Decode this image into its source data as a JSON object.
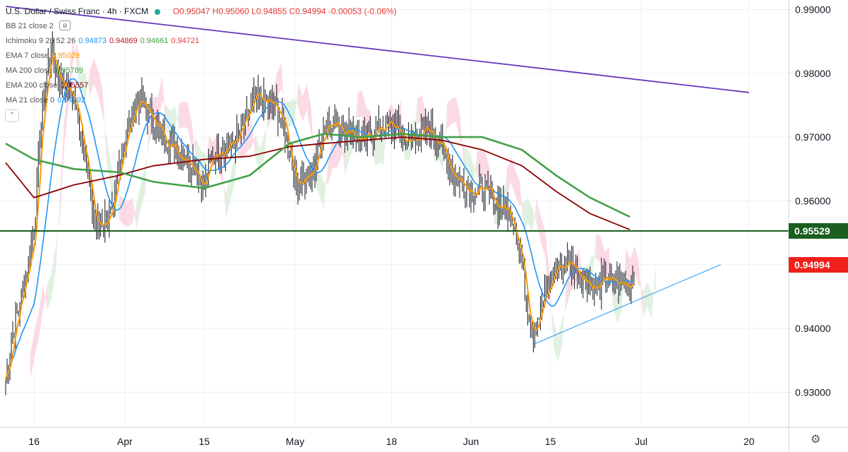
{
  "header": {
    "symbol": "U.S. Dollar / Swiss Franc · 4h · FXCM",
    "ohlc": {
      "open": "O0.95047",
      "high": "H0.95060",
      "low": "L0.94855",
      "close": "C0.94994",
      "change": "-0.00053 (-0.06%)"
    }
  },
  "indicators": [
    {
      "label": "BB 21 close 2",
      "values": []
    },
    {
      "label": "Ichimoku 9 26 52 26",
      "values": [
        {
          "v": "0.94873",
          "color": "#2196f3"
        },
        {
          "v": "0.94869",
          "color": "#b71c1c"
        },
        {
          "v": "0.94661",
          "color": "#43a047"
        },
        {
          "v": "0.94721",
          "color": "#e53935"
        }
      ]
    },
    {
      "label": "EMA 7 close",
      "values": [
        {
          "v": "0.95029",
          "color": "#ff9800"
        }
      ]
    },
    {
      "label": "MA 200 close",
      "values": [
        {
          "v": "0.95789",
          "color": "#43a047"
        }
      ]
    },
    {
      "label": "EMA 200 close",
      "values": [
        {
          "v": "0.95557",
          "color": "#8b0000"
        }
      ]
    },
    {
      "label": "MA 21 close 0",
      "values": [
        {
          "v": "0.94892",
          "color": "#2196f3"
        }
      ]
    }
  ],
  "price_tags": [
    {
      "text": "0.95529",
      "value": 0.95529,
      "color": "#1b5e20"
    },
    {
      "text": "0.94994",
      "value": 0.94994,
      "color": "#f0201a"
    }
  ],
  "colors": {
    "up_candle": "#131722",
    "ema7": "#ff9800",
    "ma21": "#2196f3",
    "ma200": "#43a047",
    "ema200": "#8b0000",
    "trend_down": "#673ab7",
    "trend_up": "#2196f3",
    "hline": "#1b5e20",
    "cloud_bull": "#c8e6c9",
    "cloud_bear": "#f8bbd0"
  },
  "chart_data": {
    "type": "candlestick",
    "title": "U.S. Dollar / Swiss Franc · 4h · FXCM",
    "y_ticks": [
      "0.99000",
      "0.98000",
      "0.97000",
      "0.96000",
      "0.95000",
      "0.94000",
      "0.93000"
    ],
    "ylim": [
      0.9245,
      0.9915
    ],
    "x_ticks": [
      "16",
      "Apr",
      "15",
      "May",
      "18",
      "Jun",
      "15",
      "Jul",
      "20"
    ],
    "grid": true,
    "series": {
      "close_path": [
        [
          "2020-03-11",
          0.932
        ],
        [
          "2020-03-12",
          0.938
        ],
        [
          "2020-03-13",
          0.942
        ],
        [
          "2020-03-16",
          0.955
        ],
        [
          "2020-03-17",
          0.97
        ],
        [
          "2020-03-18",
          0.978
        ],
        [
          "2020-03-19",
          0.984
        ],
        [
          "2020-03-20",
          0.98
        ],
        [
          "2020-03-23",
          0.976
        ],
        [
          "2020-03-24",
          0.972
        ],
        [
          "2020-03-25",
          0.968
        ],
        [
          "2020-03-26",
          0.96
        ],
        [
          "2020-03-27",
          0.956
        ],
        [
          "2020-03-30",
          0.958
        ],
        [
          "2020-03-31",
          0.966
        ],
        [
          "2020-04-01",
          0.97
        ],
        [
          "2020-04-02",
          0.972
        ],
        [
          "2020-04-03",
          0.976
        ],
        [
          "2020-04-06",
          0.973
        ],
        [
          "2020-04-07",
          0.971
        ],
        [
          "2020-04-08",
          0.97
        ],
        [
          "2020-04-09",
          0.969
        ],
        [
          "2020-04-10",
          0.968
        ],
        [
          "2020-04-13",
          0.966
        ],
        [
          "2020-04-14",
          0.964
        ],
        [
          "2020-04-15",
          0.962
        ],
        [
          "2020-04-16",
          0.966
        ],
        [
          "2020-04-17",
          0.968
        ],
        [
          "2020-04-20",
          0.969
        ],
        [
          "2020-04-21",
          0.97
        ],
        [
          "2020-04-22",
          0.972
        ],
        [
          "2020-04-23",
          0.974
        ],
        [
          "2020-04-24",
          0.976
        ],
        [
          "2020-04-27",
          0.975
        ],
        [
          "2020-04-28",
          0.974
        ],
        [
          "2020-04-29",
          0.972
        ],
        [
          "2020-04-30",
          0.968
        ],
        [
          "2020-05-01",
          0.963
        ],
        [
          "2020-05-04",
          0.964
        ],
        [
          "2020-05-05",
          0.968
        ],
        [
          "2020-05-06",
          0.971
        ],
        [
          "2020-05-07",
          0.973
        ],
        [
          "2020-05-08",
          0.972
        ],
        [
          "2020-05-11",
          0.971
        ],
        [
          "2020-05-12",
          0.97
        ],
        [
          "2020-05-13",
          0.969
        ],
        [
          "2020-05-14",
          0.97
        ],
        [
          "2020-05-15",
          0.971
        ],
        [
          "2020-05-18",
          0.972
        ],
        [
          "2020-05-19",
          0.971
        ],
        [
          "2020-05-20",
          0.97
        ],
        [
          "2020-05-21",
          0.969
        ],
        [
          "2020-05-22",
          0.97
        ],
        [
          "2020-05-25",
          0.971
        ],
        [
          "2020-05-26",
          0.97
        ],
        [
          "2020-05-27",
          0.968
        ],
        [
          "2020-05-28",
          0.966
        ],
        [
          "2020-05-29",
          0.964
        ],
        [
          "2020-06-01",
          0.962
        ],
        [
          "2020-06-02",
          0.9615
        ],
        [
          "2020-06-03",
          0.962
        ],
        [
          "2020-06-04",
          0.961
        ],
        [
          "2020-06-05",
          0.96
        ],
        [
          "2020-06-08",
          0.958
        ],
        [
          "2020-06-09",
          0.955
        ],
        [
          "2020-06-10",
          0.95
        ],
        [
          "2020-06-11",
          0.943
        ],
        [
          "2020-06-12",
          0.94
        ],
        [
          "2020-06-15",
          0.947
        ],
        [
          "2020-06-16",
          0.95
        ],
        [
          "2020-06-17",
          0.9495
        ],
        [
          "2020-06-18",
          0.9505
        ],
        [
          "2020-06-19",
          0.95
        ],
        [
          "2020-06-22",
          0.947
        ],
        [
          "2020-06-23",
          0.946
        ],
        [
          "2020-06-24",
          0.947
        ],
        [
          "2020-06-25",
          0.948
        ],
        [
          "2020-06-26",
          0.947
        ],
        [
          "2020-06-29",
          0.947
        ],
        [
          "2020-06-30",
          0.9499
        ]
      ],
      "ma200": [
        [
          "2020-03-11",
          0.969
        ],
        [
          "2020-03-16",
          0.9665
        ],
        [
          "2020-03-23",
          0.965
        ],
        [
          "2020-03-31",
          0.9645
        ],
        [
          "2020-04-06",
          0.963
        ],
        [
          "2020-04-15",
          0.962
        ],
        [
          "2020-04-23",
          0.964
        ],
        [
          "2020-04-30",
          0.969
        ],
        [
          "2020-05-06",
          0.9705
        ],
        [
          "2020-05-13",
          0.97
        ],
        [
          "2020-05-20",
          0.9705
        ],
        [
          "2020-05-27",
          0.97
        ],
        [
          "2020-06-03",
          0.97
        ],
        [
          "2020-06-10",
          0.968
        ],
        [
          "2020-06-16",
          0.964
        ],
        [
          "2020-06-22",
          0.9605
        ],
        [
          "2020-06-29",
          0.9575
        ]
      ],
      "ema200": [
        [
          "2020-03-11",
          0.966
        ],
        [
          "2020-03-16",
          0.9605
        ],
        [
          "2020-03-23",
          0.9625
        ],
        [
          "2020-03-31",
          0.964
        ],
        [
          "2020-04-06",
          0.9655
        ],
        [
          "2020-04-15",
          0.9665
        ],
        [
          "2020-04-23",
          0.967
        ],
        [
          "2020-04-30",
          0.9685
        ],
        [
          "2020-05-06",
          0.969
        ],
        [
          "2020-05-13",
          0.9695
        ],
        [
          "2020-05-20",
          0.97
        ],
        [
          "2020-05-27",
          0.9695
        ],
        [
          "2020-06-03",
          0.968
        ],
        [
          "2020-06-10",
          0.9655
        ],
        [
          "2020-06-16",
          0.9615
        ],
        [
          "2020-06-22",
          0.958
        ],
        [
          "2020-06-29",
          0.9555
        ]
      ]
    },
    "trend_lines": [
      {
        "name": "descending resistance",
        "from": [
          "2020-03-11",
          0.9905
        ],
        "to": [
          "2020-07-20",
          0.977
        ]
      },
      {
        "name": "ascending support",
        "from": [
          "2020-06-12",
          0.9375
        ],
        "to": [
          "2020-07-15",
          0.95
        ]
      }
    ],
    "horizontal_lines": [
      {
        "value": 0.95529
      }
    ],
    "last_price": 0.94994
  }
}
